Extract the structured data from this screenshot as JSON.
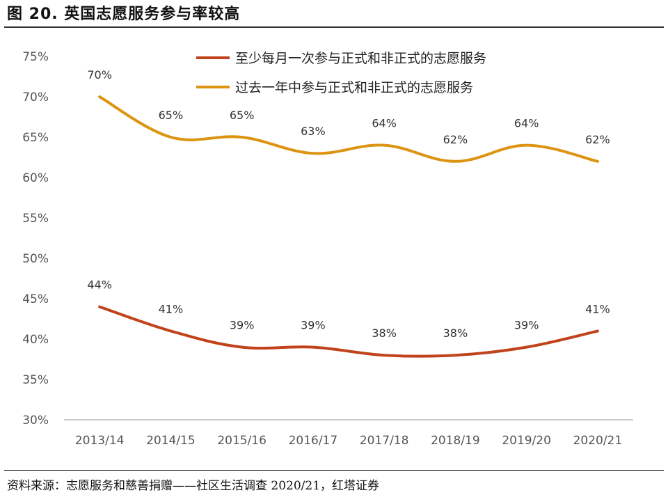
{
  "header": {
    "title": "图 20. 英国志愿服务参与率较高"
  },
  "footer": {
    "source": "资料来源：志愿服务和慈善捐赠——社区生活调查 2020/21，红塔证券"
  },
  "colors": {
    "series1": "#C0431C",
    "series2": "#DC9412",
    "axis": "#BBBBBB",
    "text": "#555555"
  },
  "chart_data": {
    "type": "line",
    "categories": [
      "2013/14",
      "2014/15",
      "2015/16",
      "2016/17",
      "2017/18",
      "2018/19",
      "2019/20",
      "2020/21"
    ],
    "ylim": [
      30,
      75
    ],
    "yticks": [
      30,
      35,
      40,
      45,
      50,
      55,
      60,
      65,
      70,
      75
    ],
    "ytick_labels": [
      "30%",
      "35%",
      "40%",
      "45%",
      "50%",
      "55%",
      "60%",
      "65%",
      "70%",
      "75%"
    ],
    "grid": false,
    "legend_position": "top",
    "series": [
      {
        "name": "至少每月一次参与正式和非正式的志愿服务",
        "values": [
          44,
          41,
          39,
          39,
          38,
          38,
          39,
          41
        ],
        "labels": [
          "44%",
          "41%",
          "39%",
          "39%",
          "38%",
          "38%",
          "39%",
          "41%"
        ]
      },
      {
        "name": "过去一年中参与正式和非正式的志愿服务",
        "values": [
          70,
          65,
          65,
          63,
          64,
          62,
          64,
          62
        ],
        "labels": [
          "70%",
          "65%",
          "65%",
          "63%",
          "64%",
          "62%",
          "64%",
          "62%"
        ]
      }
    ]
  }
}
